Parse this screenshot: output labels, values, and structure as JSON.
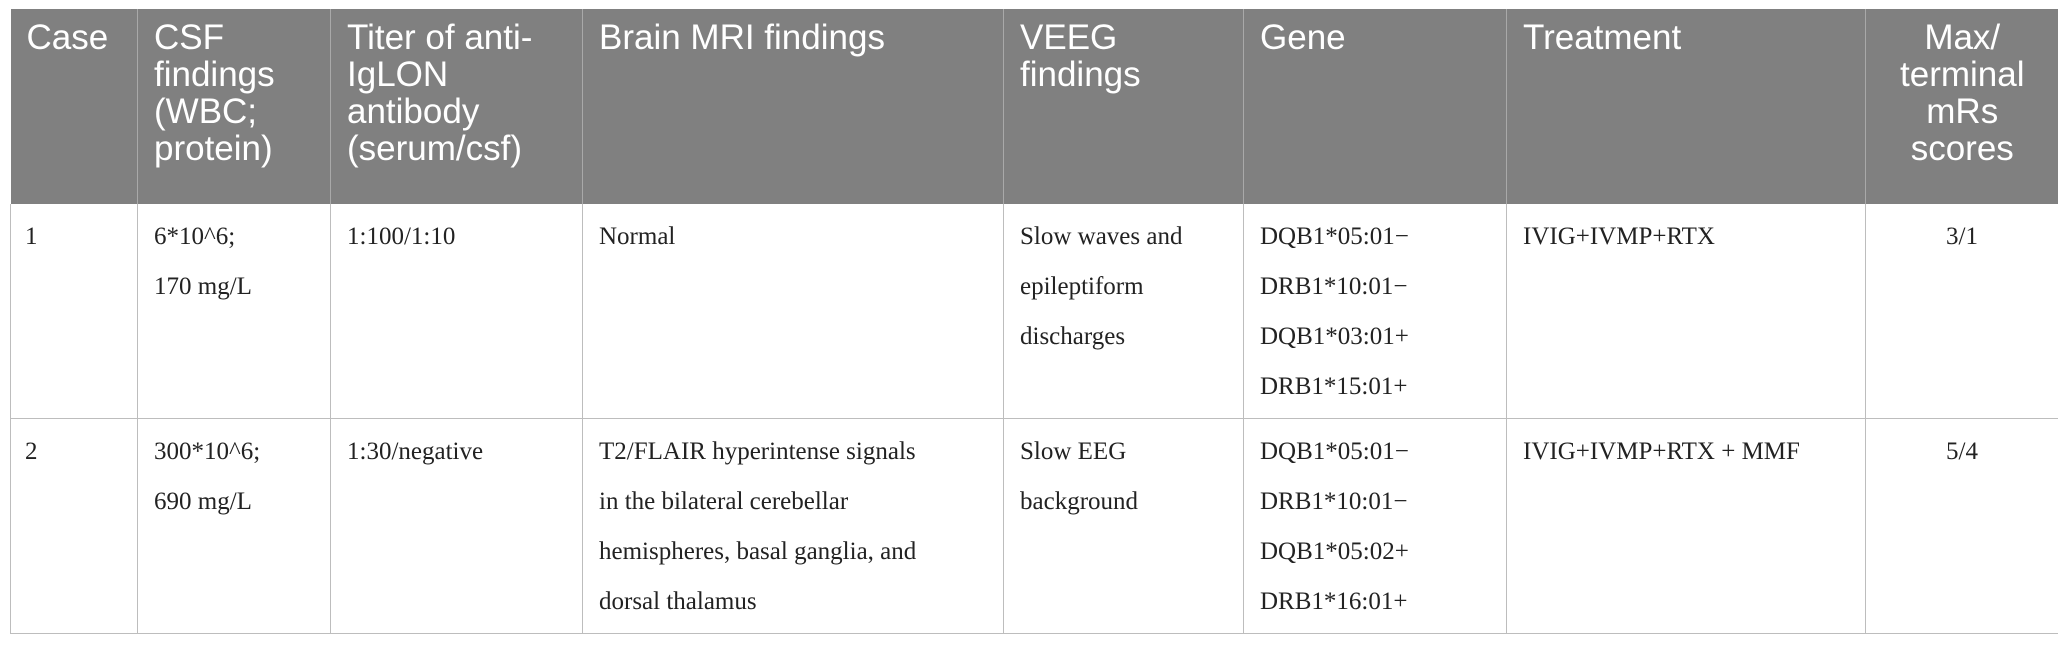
{
  "table": {
    "headers": [
      "Case",
      "CSF findings (WBC; protein)",
      "Titer of anti-IgLON antibody (serum/csf)",
      "Brain MRI findings",
      "VEEG findings",
      "Gene",
      "Treatment",
      "Max/ terminal mRs scores"
    ],
    "rows": [
      {
        "case": "1",
        "csf": [
          "6*10^6;",
          "170 mg/L"
        ],
        "titer": "1:100/1:10",
        "mri": [
          "Normal"
        ],
        "veeg": [
          "Slow waves and",
          "epileptiform",
          "discharges"
        ],
        "gene": [
          "DQB1*05:01−",
          "DRB1*10:01−",
          "DQB1*03:01+",
          "DRB1*15:01+"
        ],
        "treatment": "IVIG+IVMP+RTX",
        "mrs": "3/1"
      },
      {
        "case": "2",
        "csf": [
          "300*10^6;",
          "690 mg/L"
        ],
        "titer": "1:30/negative",
        "mri": [
          "T2/FLAIR hyperintense signals",
          "in the bilateral cerebellar",
          "hemispheres, basal ganglia, and",
          "dorsal thalamus"
        ],
        "veeg": [
          "Slow EEG",
          "background"
        ],
        "gene": [
          "DQB1*05:01−",
          "DRB1*10:01−",
          "DQB1*05:02+",
          "DRB1*16:01+"
        ],
        "treatment": "IVIG+IVMP+RTX + MMF",
        "mrs": "5/4"
      }
    ]
  }
}
